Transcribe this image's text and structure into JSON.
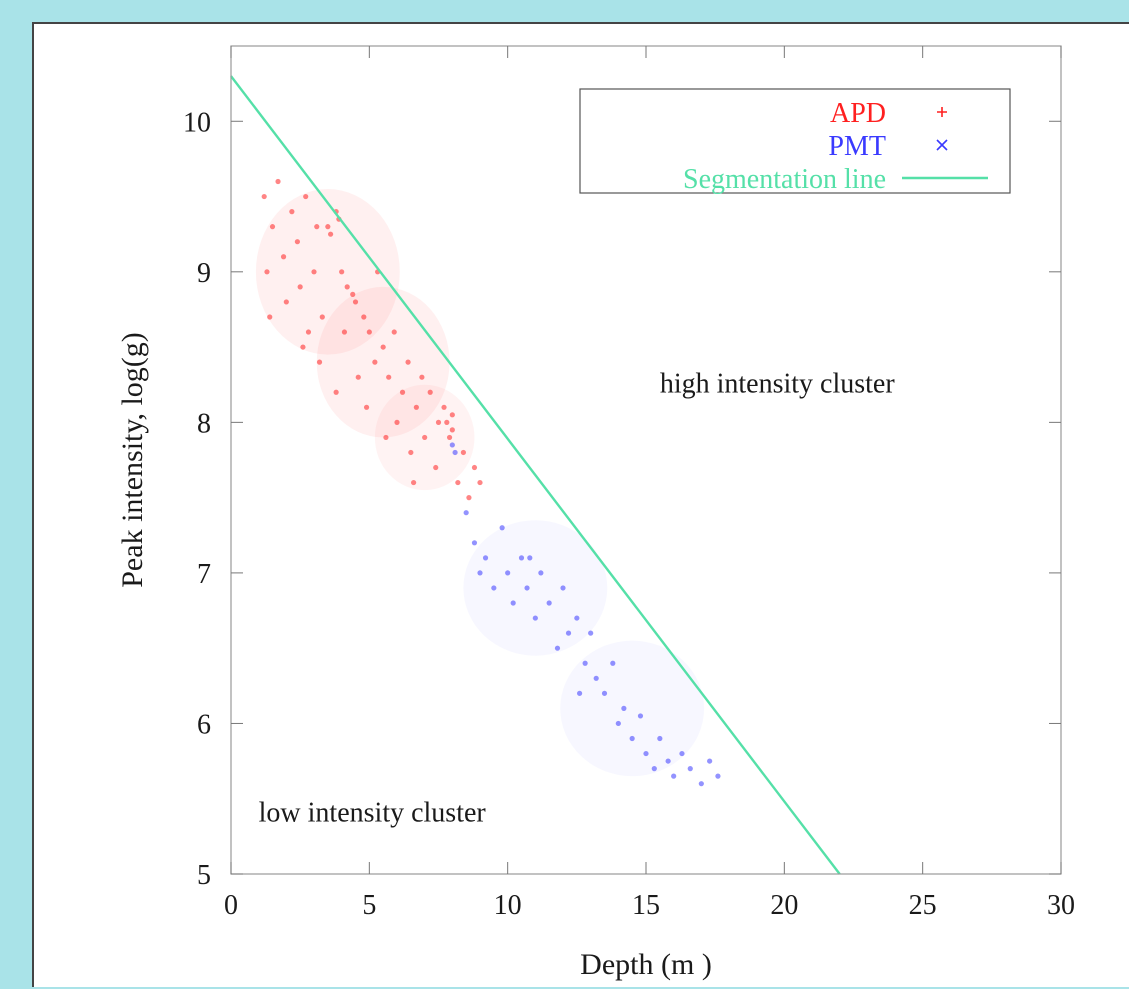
{
  "chart_data": {
    "type": "scatter",
    "xlabel": "Depth (m )",
    "ylabel": "Peak intensity, log(g)",
    "xlim": [
      0,
      30
    ],
    "ylim": [
      5,
      10.5
    ],
    "xticks": [
      0,
      5,
      10,
      15,
      20,
      25,
      30
    ],
    "yticks": [
      5,
      6,
      7,
      8,
      9,
      10
    ],
    "grid": false,
    "legend_position": "top-right",
    "legend": [
      {
        "label": "APD",
        "marker": "+",
        "color": "#ff2020"
      },
      {
        "label": "PMT",
        "marker": "×",
        "color": "#3a3aff"
      },
      {
        "label": "Segmentation line",
        "marker": "line",
        "color": "#55e0a8"
      }
    ],
    "annotations": [
      {
        "text": "high intensity cluster",
        "x": 15.5,
        "y": 8.2
      },
      {
        "text": "low intensity cluster",
        "x": 1.0,
        "y": 5.35
      }
    ],
    "series": [
      {
        "name": "APD",
        "color": "#ff2020",
        "points": [
          [
            1.2,
            9.5
          ],
          [
            1.3,
            9.0
          ],
          [
            1.4,
            8.7
          ],
          [
            1.5,
            9.3
          ],
          [
            1.7,
            9.6
          ],
          [
            1.9,
            9.1
          ],
          [
            2.0,
            8.8
          ],
          [
            2.2,
            9.4
          ],
          [
            2.4,
            9.2
          ],
          [
            2.5,
            8.9
          ],
          [
            2.7,
            9.5
          ],
          [
            2.8,
            8.6
          ],
          [
            3.0,
            9.0
          ],
          [
            3.1,
            9.3
          ],
          [
            3.3,
            8.7
          ],
          [
            3.5,
            9.3
          ],
          [
            3.6,
            9.25
          ],
          [
            3.8,
            9.4
          ],
          [
            3.9,
            9.35
          ],
          [
            4.0,
            9.0
          ],
          [
            4.1,
            8.6
          ],
          [
            4.2,
            8.9
          ],
          [
            4.4,
            8.85
          ],
          [
            4.5,
            8.8
          ],
          [
            4.6,
            8.3
          ],
          [
            4.8,
            8.7
          ],
          [
            5.0,
            8.6
          ],
          [
            5.2,
            8.4
          ],
          [
            5.3,
            9.0
          ],
          [
            5.5,
            8.5
          ],
          [
            5.7,
            8.3
          ],
          [
            5.9,
            8.6
          ],
          [
            6.0,
            8.0
          ],
          [
            6.2,
            8.2
          ],
          [
            6.4,
            8.4
          ],
          [
            6.5,
            7.8
          ],
          [
            6.7,
            8.1
          ],
          [
            6.9,
            8.3
          ],
          [
            7.0,
            7.9
          ],
          [
            7.2,
            8.2
          ],
          [
            7.4,
            7.7
          ],
          [
            7.5,
            8.0
          ],
          [
            7.7,
            8.1
          ],
          [
            7.8,
            8.0
          ],
          [
            7.9,
            7.9
          ],
          [
            8.0,
            8.05
          ],
          [
            8.0,
            7.95
          ],
          [
            8.2,
            7.6
          ],
          [
            8.4,
            7.8
          ],
          [
            8.6,
            7.5
          ],
          [
            8.8,
            7.7
          ],
          [
            9.0,
            7.6
          ],
          [
            3.2,
            8.4
          ],
          [
            2.6,
            8.5
          ],
          [
            3.8,
            8.2
          ],
          [
            5.6,
            7.9
          ],
          [
            6.6,
            7.6
          ],
          [
            4.9,
            8.1
          ]
        ]
      },
      {
        "name": "PMT",
        "color": "#3a3aff",
        "points": [
          [
            8.0,
            7.85
          ],
          [
            8.1,
            7.8
          ],
          [
            8.5,
            7.4
          ],
          [
            8.8,
            7.2
          ],
          [
            9.0,
            7.0
          ],
          [
            9.2,
            7.1
          ],
          [
            9.5,
            6.9
          ],
          [
            9.8,
            7.3
          ],
          [
            10.0,
            7.0
          ],
          [
            10.2,
            6.8
          ],
          [
            10.5,
            7.1
          ],
          [
            10.7,
            6.9
          ],
          [
            11.0,
            6.7
          ],
          [
            11.2,
            7.0
          ],
          [
            11.5,
            6.8
          ],
          [
            11.8,
            6.5
          ],
          [
            12.0,
            6.9
          ],
          [
            12.2,
            6.6
          ],
          [
            12.5,
            6.7
          ],
          [
            12.8,
            6.4
          ],
          [
            13.0,
            6.6
          ],
          [
            13.2,
            6.3
          ],
          [
            13.5,
            6.2
          ],
          [
            13.8,
            6.4
          ],
          [
            14.0,
            6.0
          ],
          [
            14.2,
            6.1
          ],
          [
            14.5,
            5.9
          ],
          [
            14.8,
            6.05
          ],
          [
            15.0,
            5.8
          ],
          [
            15.3,
            5.7
          ],
          [
            15.5,
            5.9
          ],
          [
            15.8,
            5.75
          ],
          [
            16.0,
            5.65
          ],
          [
            16.3,
            5.8
          ],
          [
            16.6,
            5.7
          ],
          [
            17.0,
            5.6
          ],
          [
            17.3,
            5.75
          ],
          [
            17.6,
            5.65
          ],
          [
            10.8,
            7.1
          ],
          [
            12.6,
            6.2
          ]
        ]
      },
      {
        "name": "Segmentation line",
        "color": "#55e0a8",
        "type": "line",
        "points": [
          [
            0,
            10.3
          ],
          [
            22,
            5.0
          ]
        ]
      }
    ]
  }
}
